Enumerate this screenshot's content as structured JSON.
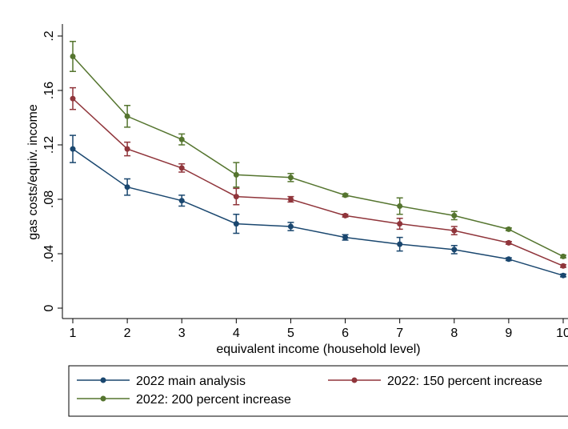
{
  "chart_data": {
    "type": "line",
    "x_label": "equivalent income (household level)",
    "y_label": "gas costs/equiv. income",
    "x": [
      1,
      2,
      3,
      4,
      5,
      6,
      7,
      8,
      9,
      10
    ],
    "xlim": [
      1,
      10
    ],
    "xticks": [
      1,
      2,
      3,
      4,
      5,
      6,
      7,
      8,
      9,
      10
    ],
    "ylim": [
      0,
      0.2
    ],
    "yticks": [
      0,
      {
        "value": 0.04,
        "label": ".04"
      },
      {
        "value": 0.08,
        "label": ".08"
      },
      {
        "value": 0.12,
        "label": ".12"
      },
      {
        "value": 0.16,
        "label": ".16"
      },
      {
        "value": 0.2,
        "label": ".2"
      }
    ],
    "series": [
      {
        "name": "2022 main analysis",
        "color": "#1a476f",
        "values": [
          0.117,
          0.089,
          0.079,
          0.062,
          0.06,
          0.052,
          0.047,
          0.043,
          0.036,
          0.024
        ],
        "errors": [
          0.01,
          0.006,
          0.004,
          0.007,
          0.003,
          0.002,
          0.005,
          0.003,
          0.001,
          0.001
        ]
      },
      {
        "name": "2022: 150 percent increase",
        "color": "#90353b",
        "values": [
          0.154,
          0.117,
          0.103,
          0.082,
          0.08,
          0.068,
          0.062,
          0.057,
          0.048,
          0.031
        ],
        "errors": [
          0.008,
          0.005,
          0.003,
          0.006,
          0.002,
          0.001,
          0.004,
          0.003,
          0.001,
          0.001
        ]
      },
      {
        "name": "2022: 200 percent increase",
        "color": "#55752f",
        "values": [
          0.185,
          0.141,
          0.124,
          0.098,
          0.096,
          0.083,
          0.075,
          0.068,
          0.058,
          0.038
        ],
        "errors": [
          0.011,
          0.008,
          0.004,
          0.009,
          0.003,
          0.001,
          0.006,
          0.003,
          0.001,
          0.001
        ]
      }
    ]
  }
}
